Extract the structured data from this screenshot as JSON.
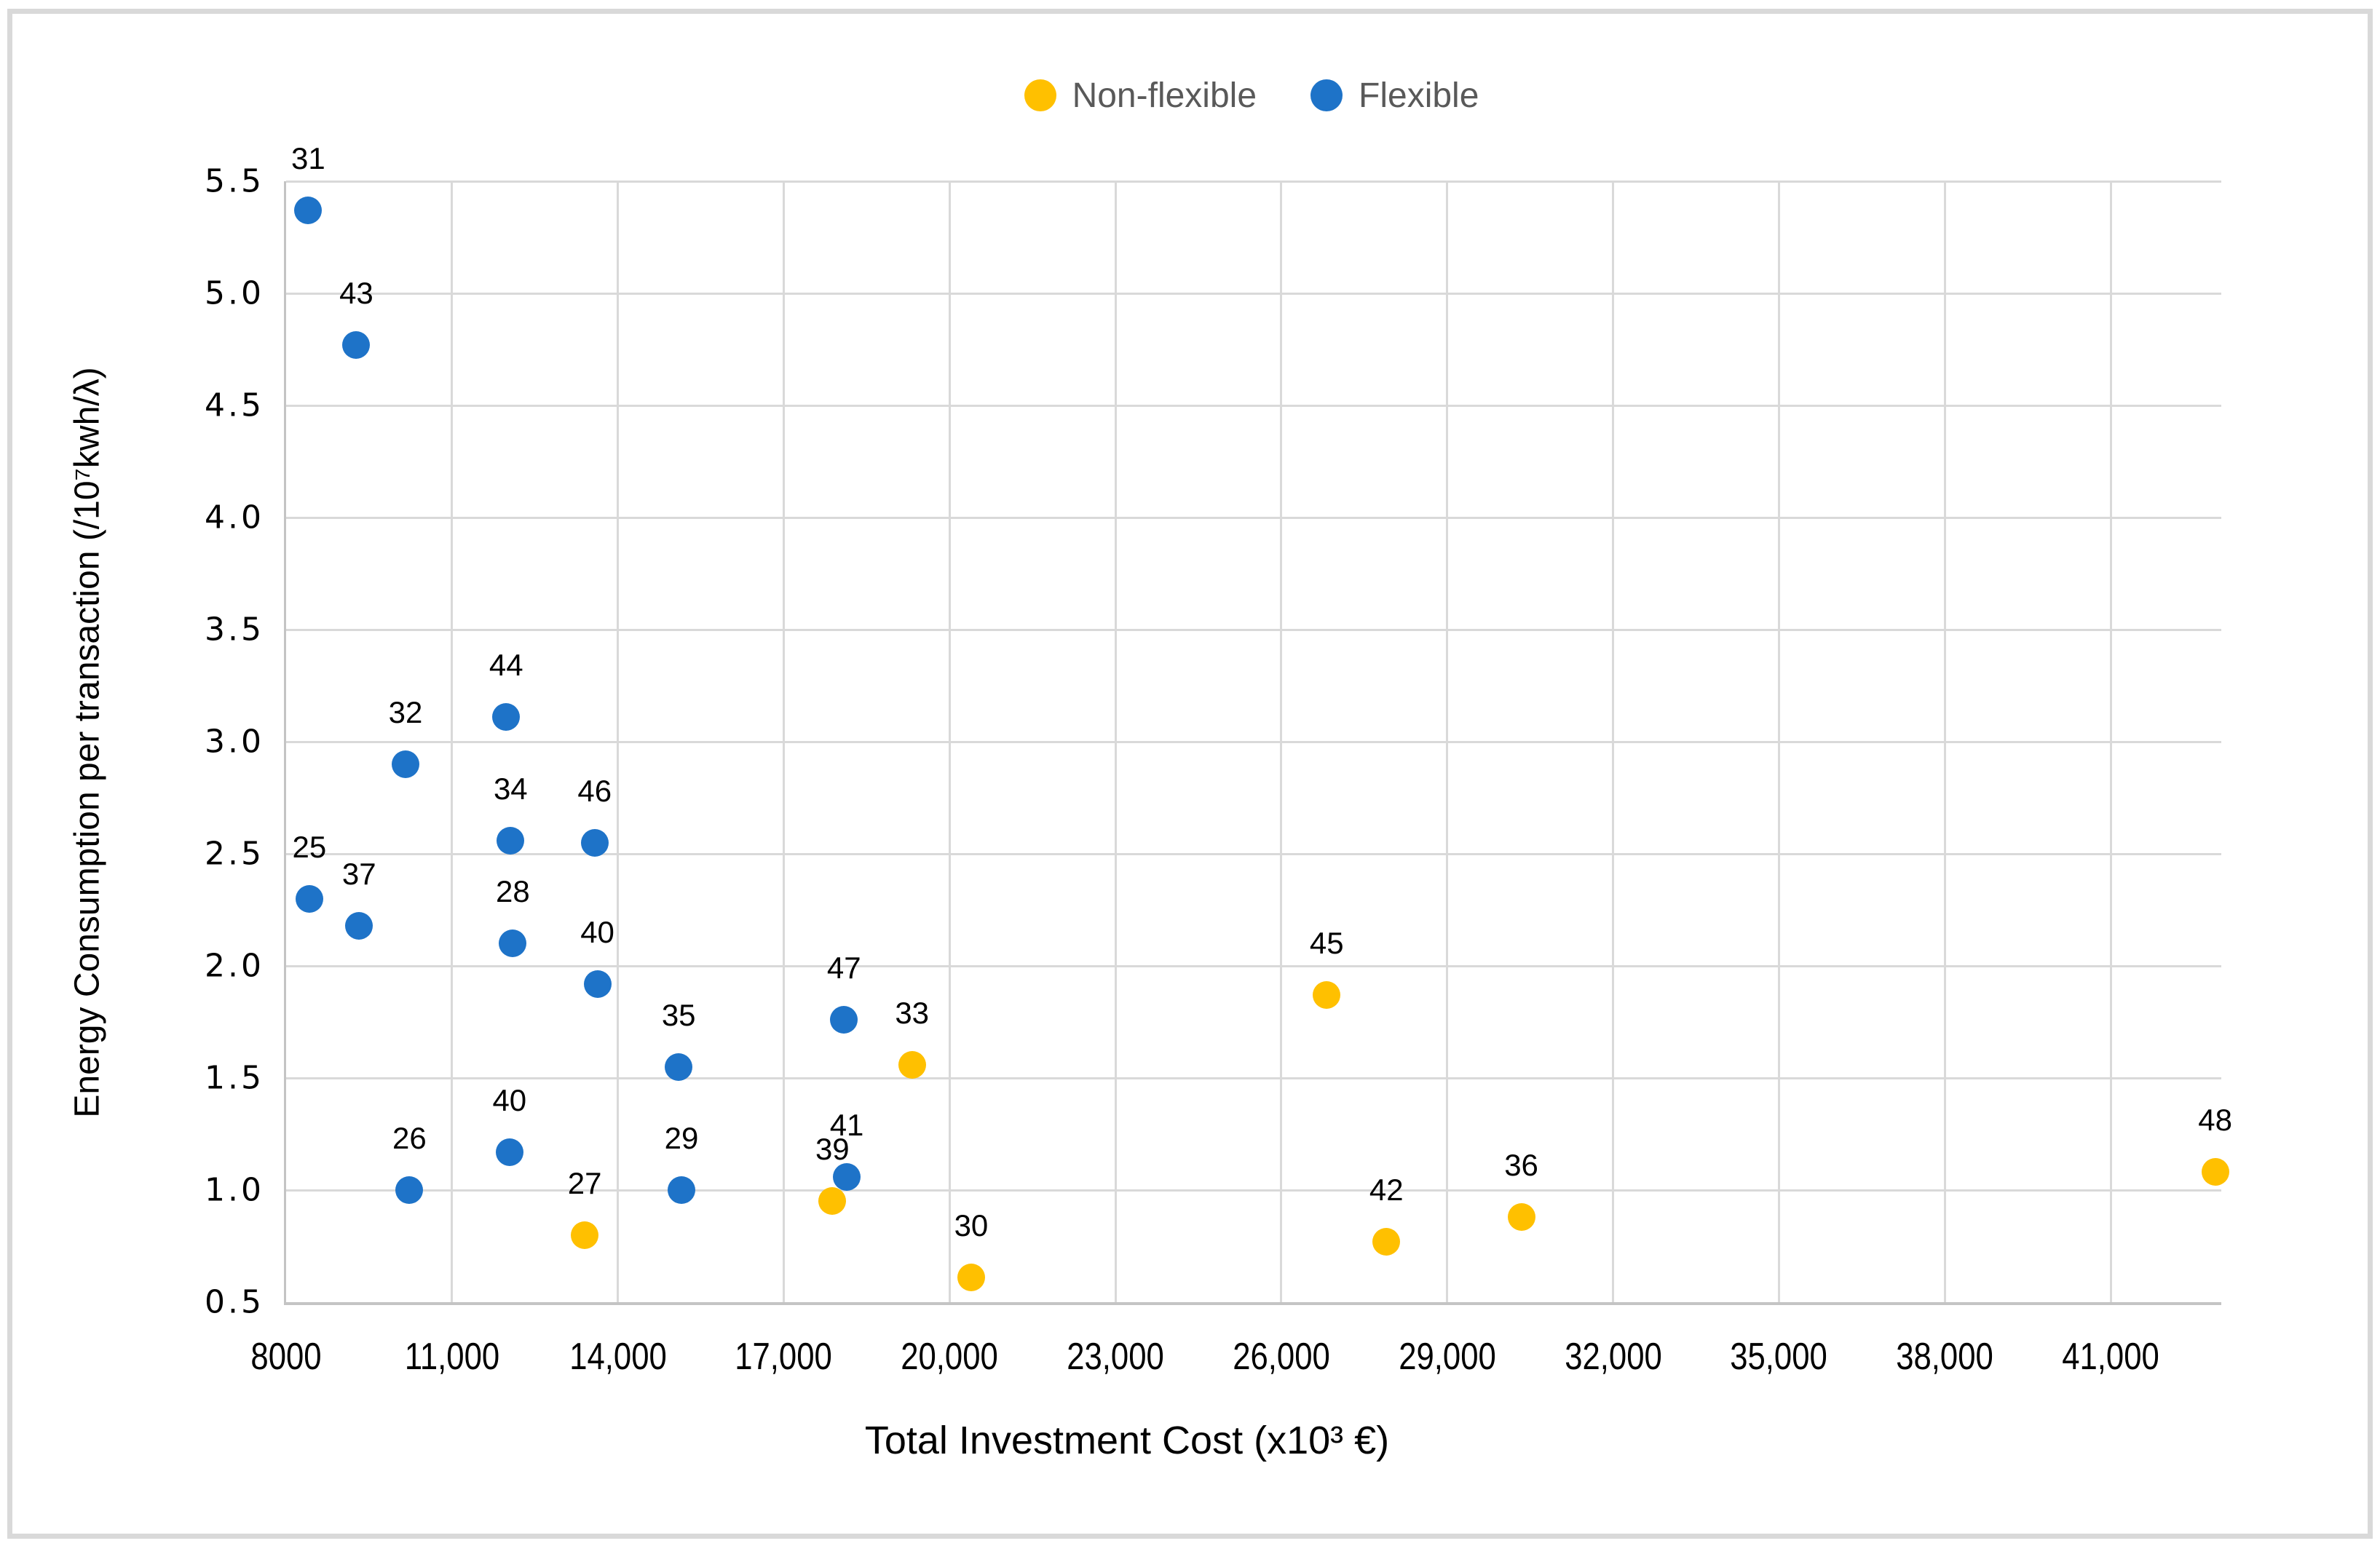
{
  "legend": {
    "items": [
      {
        "label": "Non-flexible",
        "color": "#FFC000"
      },
      {
        "label": "Flexible",
        "color": "#1E73C8"
      }
    ]
  },
  "axis_titles": {
    "x": "Total Investment Cost  (x10³ €)",
    "y": "Energy Consumption per transaction (/10⁷kwh/λ)"
  },
  "colors": {
    "non_flexible": "#FFC000",
    "flexible": "#1E73C8",
    "gridline": "#D9D9D9",
    "axis_line": "#C4C4C4",
    "legend_text": "#595959",
    "label_text": "#000000",
    "frame": "#D9D9D9"
  },
  "chart_data": {
    "type": "scatter",
    "title": "",
    "xlabel": "Total Investment Cost  (x10³ €)",
    "ylabel": "Energy Consumption per transaction (/10⁷kwh/λ)",
    "xlim": [
      8000,
      43000
    ],
    "ylim": [
      0.5,
      5.5
    ],
    "grid": true,
    "legend_position": "top-center",
    "marker_diameter_px": 38,
    "x_ticks": [
      {
        "value": 8000,
        "label": "8000"
      },
      {
        "value": 11000,
        "label": "11,000"
      },
      {
        "value": 14000,
        "label": "14,000"
      },
      {
        "value": 17000,
        "label": "17,000"
      },
      {
        "value": 20000,
        "label": "20,000"
      },
      {
        "value": 23000,
        "label": "23,000"
      },
      {
        "value": 26000,
        "label": "26,000"
      },
      {
        "value": 29000,
        "label": "29,000"
      },
      {
        "value": 32000,
        "label": "32,000"
      },
      {
        "value": 35000,
        "label": "35,000"
      },
      {
        "value": 38000,
        "label": "38,000"
      },
      {
        "value": 41000,
        "label": "41,000"
      }
    ],
    "y_ticks": [
      {
        "value": 0.5,
        "label": "0.5"
      },
      {
        "value": 1.0,
        "label": "1.0"
      },
      {
        "value": 1.5,
        "label": "1.5"
      },
      {
        "value": 2.0,
        "label": "2.0"
      },
      {
        "value": 2.5,
        "label": "2.5"
      },
      {
        "value": 3.0,
        "label": "3.0"
      },
      {
        "value": 3.5,
        "label": "3.5"
      },
      {
        "value": 4.0,
        "label": "4.0"
      },
      {
        "value": 4.5,
        "label": "4.5"
      },
      {
        "value": 5.0,
        "label": "5.0"
      },
      {
        "value": 5.5,
        "label": "5.5"
      }
    ],
    "series": [
      {
        "name": "Non-flexible",
        "color": "#FFC000",
        "points": [
          {
            "label": "27",
            "x": 13400,
            "y": 0.8
          },
          {
            "label": "30",
            "x": 20390,
            "y": 0.61
          },
          {
            "label": "33",
            "x": 19320,
            "y": 1.56
          },
          {
            "label": "36",
            "x": 30340,
            "y": 0.88
          },
          {
            "label": "39",
            "x": 17880,
            "y": 0.95
          },
          {
            "label": "42",
            "x": 27900,
            "y": 0.77
          },
          {
            "label": "45",
            "x": 26820,
            "y": 1.87
          },
          {
            "label": "48",
            "x": 42890,
            "y": 1.08
          }
        ]
      },
      {
        "name": "Flexible",
        "color": "#1E73C8",
        "points": [
          {
            "label": "25",
            "x": 8420,
            "y": 2.3
          },
          {
            "label": "26",
            "x": 10230,
            "y": 1.0
          },
          {
            "label": "28",
            "x": 12100,
            "y": 2.1
          },
          {
            "label": "29",
            "x": 15150,
            "y": 1.0
          },
          {
            "label": "31",
            "x": 8400,
            "y": 5.37
          },
          {
            "label": "32",
            "x": 10160,
            "y": 2.9
          },
          {
            "label": "34",
            "x": 12060,
            "y": 2.56
          },
          {
            "label": "35",
            "x": 15100,
            "y": 1.55
          },
          {
            "label": "37",
            "x": 9320,
            "y": 2.18
          },
          {
            "label": "40",
            "x": 12040,
            "y": 1.17
          },
          {
            "label": "40",
            "x": 13630,
            "y": 1.92
          },
          {
            "label": "41",
            "x": 18140,
            "y": 1.06
          },
          {
            "label": "43",
            "x": 9270,
            "y": 4.77
          },
          {
            "label": "44",
            "x": 11980,
            "y": 3.11
          },
          {
            "label": "46",
            "x": 13580,
            "y": 2.55
          },
          {
            "label": "47",
            "x": 18090,
            "y": 1.76
          }
        ]
      }
    ]
  }
}
